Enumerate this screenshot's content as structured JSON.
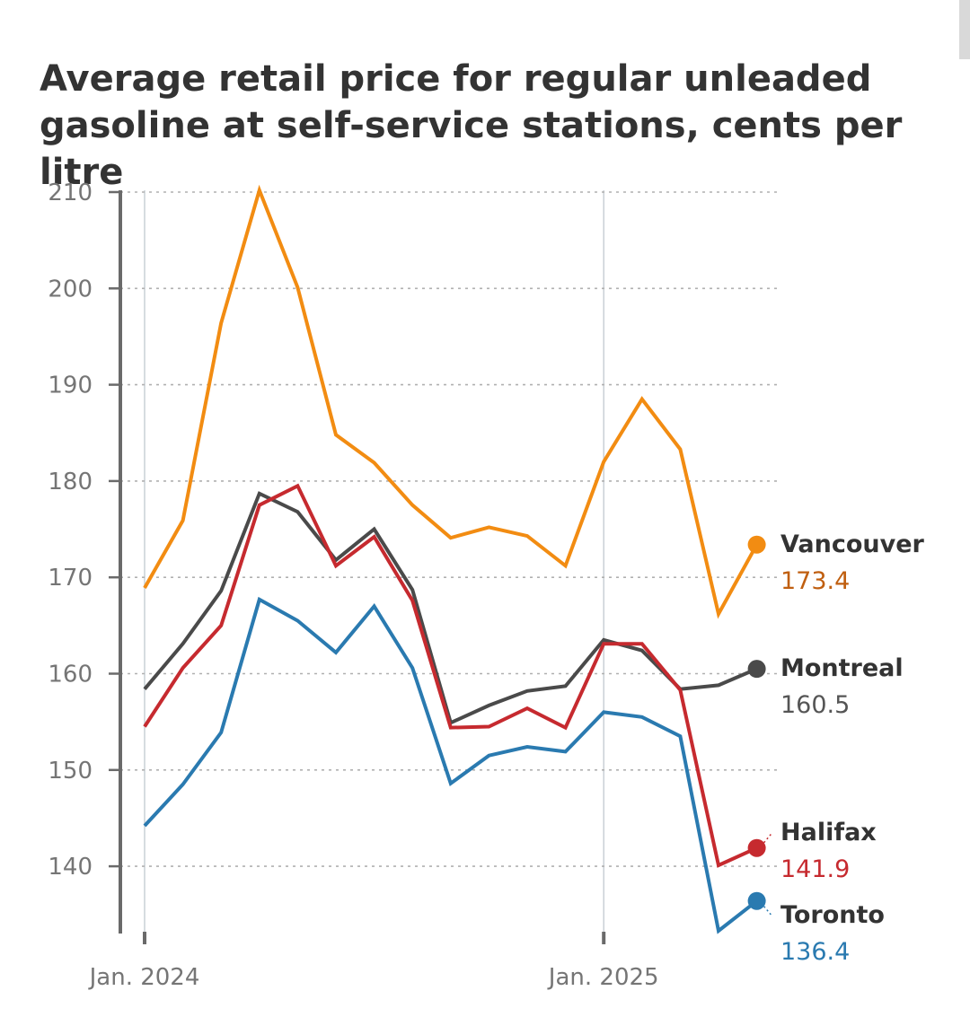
{
  "chart_data": {
    "type": "line",
    "title": "Average retail price for regular unleaded gasoline at self-service stations, cents per litre",
    "x": [
      "2024-01",
      "2024-02",
      "2024-03",
      "2024-04",
      "2024-05",
      "2024-06",
      "2024-07",
      "2024-08",
      "2024-09",
      "2024-10",
      "2024-11",
      "2024-12",
      "2025-01",
      "2025-02",
      "2025-03",
      "2025-04",
      "2025-05"
    ],
    "x_tick_labels": [
      {
        "x": "2024-01",
        "label": "Jan. 2024"
      },
      {
        "x": "2025-01",
        "label": "Jan. 2025"
      }
    ],
    "ylim": [
      133,
      210
    ],
    "y_ticks": [
      140,
      150,
      160,
      170,
      180,
      190,
      200,
      210
    ],
    "grid": true,
    "series": [
      {
        "name": "Vancouver",
        "color": "#f28c12",
        "value_color": "#c05f10",
        "end_label": "173.4",
        "values": [
          168.9,
          175.9,
          196.4,
          210.2,
          200.1,
          184.8,
          181.9,
          177.5,
          174.1,
          175.2,
          174.3,
          171.2,
          182.0,
          188.5,
          183.3,
          166.2,
          173.4
        ]
      },
      {
        "name": "Montreal",
        "color": "#4a4a4a",
        "value_color": "#555555",
        "end_label": "160.5",
        "values": [
          158.4,
          163.1,
          168.6,
          178.7,
          176.8,
          171.8,
          175.0,
          168.7,
          154.9,
          156.7,
          158.2,
          158.7,
          163.5,
          162.4,
          158.4,
          158.8,
          160.5
        ]
      },
      {
        "name": "Halifax",
        "color": "#c62a2f",
        "value_color": "#c62a2f",
        "end_label": "141.9",
        "values": [
          154.5,
          160.6,
          165.0,
          177.5,
          179.5,
          171.2,
          174.2,
          167.6,
          154.4,
          154.5,
          156.4,
          154.4,
          163.1,
          163.1,
          158.3,
          140.1,
          141.9
        ]
      },
      {
        "name": "Toronto",
        "color": "#2a7ab0",
        "value_color": "#2a7ab0",
        "end_label": "136.4",
        "values": [
          144.2,
          148.5,
          153.9,
          167.7,
          165.5,
          162.2,
          167.0,
          160.6,
          148.6,
          151.5,
          152.4,
          151.9,
          156.0,
          155.5,
          153.5,
          133.3,
          136.4
        ]
      }
    ]
  }
}
